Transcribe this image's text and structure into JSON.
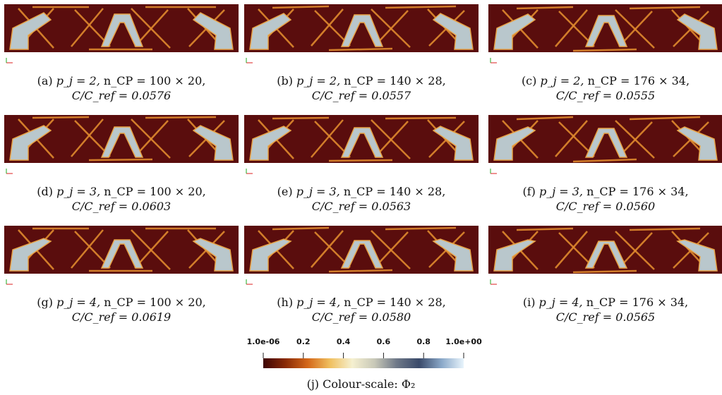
{
  "colors": {
    "background": "#5a0d0d",
    "solid": "#b9c7cc",
    "solid_edge": "#e8a347",
    "strut": "#e08a2e"
  },
  "panels": [
    {
      "id": "a",
      "prefix": "(a)",
      "pj": "p_j = 2",
      "ncp": "n_CP = 100 × 20,",
      "cc": "C/C_ref = 0.0576"
    },
    {
      "id": "b",
      "prefix": "(b)",
      "pj": "p_j = 2",
      "ncp": "n_CP = 140 × 28,",
      "cc": "C/C_ref = 0.0557"
    },
    {
      "id": "c",
      "prefix": "(c)",
      "pj": "p_j = 2",
      "ncp": "n_CP = 176 × 34,",
      "cc": "C/C_ref = 0.0555"
    },
    {
      "id": "d",
      "prefix": "(d)",
      "pj": "p_j = 3",
      "ncp": "n_CP = 100 × 20,",
      "cc": "C/C_ref = 0.0603"
    },
    {
      "id": "e",
      "prefix": "(e)",
      "pj": "p_j = 3",
      "ncp": "n_CP = 140 × 28,",
      "cc": "C/C_ref = 0.0563"
    },
    {
      "id": "f",
      "prefix": "(f)",
      "pj": "p_j = 3",
      "ncp": "n_CP = 176 × 34,",
      "cc": "C/C_ref = 0.0560"
    },
    {
      "id": "g",
      "prefix": "(g)",
      "pj": "p_j = 4",
      "ncp": "n_CP = 100 × 20,",
      "cc": "C/C_ref = 0.0619"
    },
    {
      "id": "h",
      "prefix": "(h)",
      "pj": "p_j = 4",
      "ncp": "n_CP = 140 × 28,",
      "cc": "C/C_ref = 0.0580"
    },
    {
      "id": "i",
      "prefix": "(i)",
      "pj": "p_j = 4",
      "ncp": "n_CP = 176 × 34,",
      "cc": "C/C_ref = 0.0565"
    }
  ],
  "colorbar": {
    "ticks": [
      "1.0e-06",
      "0.2",
      "0.4",
      "0.6",
      "0.8",
      "1.0e+00"
    ],
    "caption": "(j) Colour-scale: Φ₂",
    "stops": [
      "#3d0505",
      "#8a2a06",
      "#d4681a",
      "#f0c060",
      "#f5f0d0",
      "#c8c8b8",
      "#6e7888",
      "#3a4a6a",
      "#8aa8c8",
      "#e8f4fc"
    ]
  }
}
